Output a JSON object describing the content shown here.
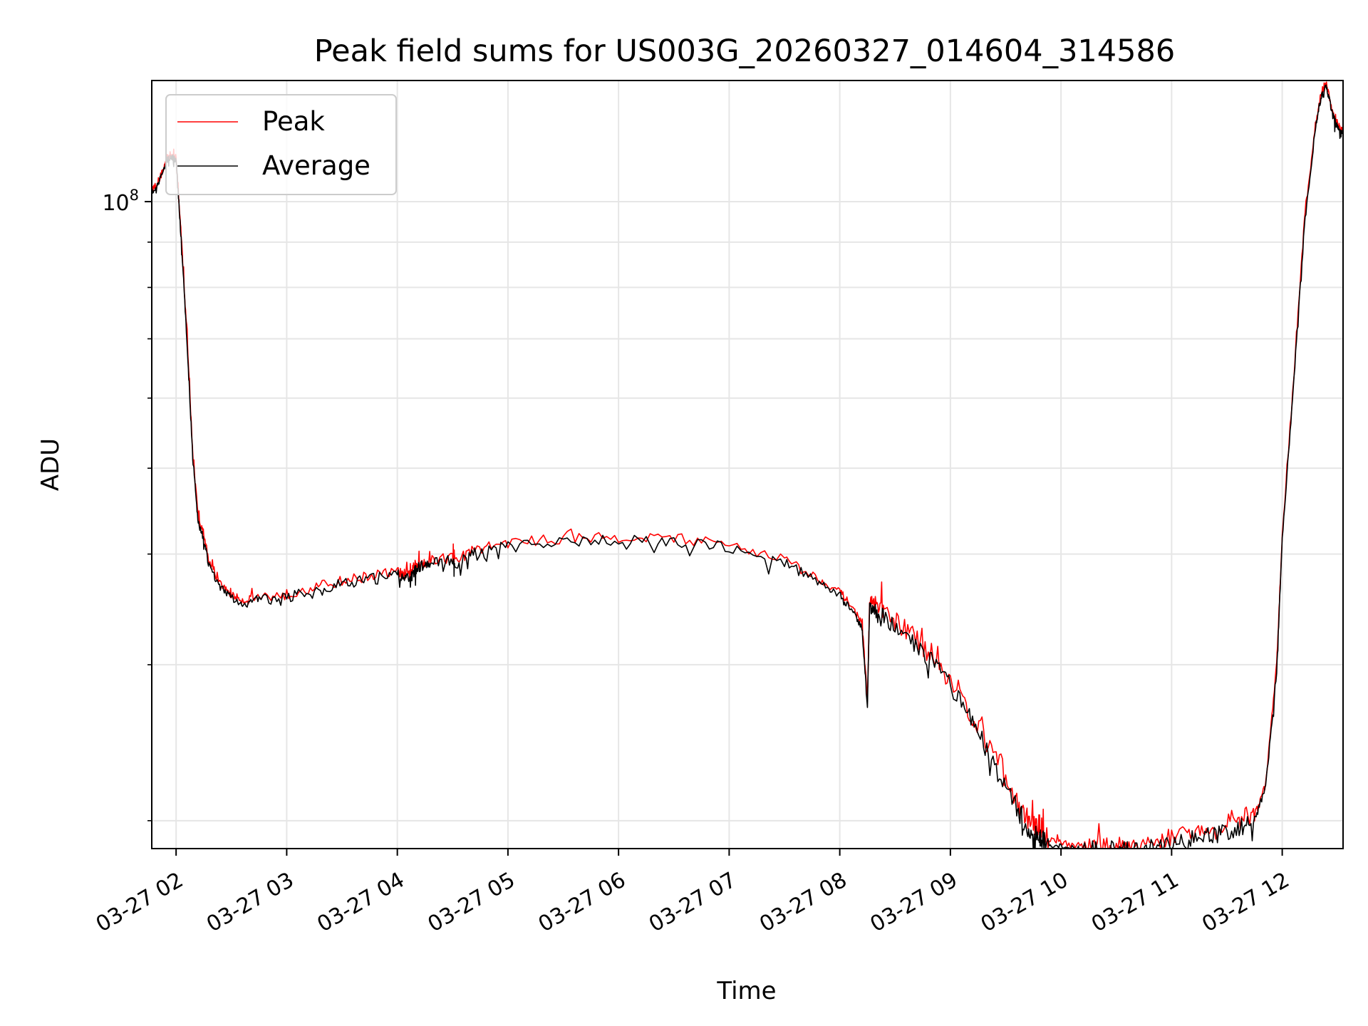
{
  "chart_data": {
    "type": "line",
    "title": "Peak field sums for US003G_20260327_014604_314586",
    "xlabel": "Time",
    "ylabel": "ADU",
    "yscale": "log",
    "ylim": [
      18600000,
      137000000
    ],
    "xlim": [
      1.78,
      12.55
    ],
    "x_unit": "hour of 2026-03-27",
    "grid": true,
    "legend_position": "upper left",
    "colors": {
      "peak": "#ff0000",
      "average": "#000000",
      "grid": "#e6e6e6",
      "axes": "#000000"
    },
    "x_ticks": [
      {
        "value": 2,
        "label": "03-27 02"
      },
      {
        "value": 3,
        "label": "03-27 03"
      },
      {
        "value": 4,
        "label": "03-27 04"
      },
      {
        "value": 5,
        "label": "03-27 05"
      },
      {
        "value": 6,
        "label": "03-27 06"
      },
      {
        "value": 7,
        "label": "03-27 07"
      },
      {
        "value": 8,
        "label": "03-27 08"
      },
      {
        "value": 9,
        "label": "03-27 09"
      },
      {
        "value": 10,
        "label": "03-27 10"
      },
      {
        "value": 11,
        "label": "03-27 11"
      },
      {
        "value": 12,
        "label": "03-27 12"
      }
    ],
    "y_major_ticks": [
      {
        "value": 100000000,
        "label_base": "10",
        "label_exp": "8"
      }
    ],
    "y_minor_ticks": [
      20000000,
      30000000,
      40000000,
      50000000,
      60000000,
      70000000,
      80000000,
      90000000
    ],
    "series": [
      {
        "name": "Peak",
        "color": "#ff0000",
        "x": [
          1.78,
          1.85,
          1.92,
          1.95,
          2.0,
          2.05,
          2.1,
          2.15,
          2.2,
          2.25,
          2.3,
          2.4,
          2.5,
          2.6,
          2.75,
          3.0,
          3.25,
          3.5,
          3.75,
          4.0,
          4.1,
          4.15,
          4.2,
          4.3,
          4.5,
          4.52,
          4.7,
          5.0,
          5.5,
          6.0,
          6.5,
          7.0,
          7.5,
          7.8,
          8.0,
          8.1,
          8.2,
          8.25,
          8.27,
          8.3,
          8.4,
          8.6,
          8.8,
          9.0,
          9.2,
          9.4,
          9.6,
          9.7,
          9.8,
          9.85,
          10.0,
          10.2,
          10.4,
          10.6,
          10.8,
          11.0,
          11.2,
          11.4,
          11.6,
          11.75,
          11.85,
          11.95,
          12.0,
          12.1,
          12.2,
          12.3,
          12.35,
          12.4,
          12.45,
          12.5,
          12.55
        ],
        "y": [
          103000000,
          106000000,
          112000000,
          113000000,
          112000000,
          90000000,
          70000000,
          52000000,
          44000000,
          42000000,
          39000000,
          37000000,
          36000000,
          35500000,
          35800000,
          36000000,
          36700000,
          37300000,
          37800000,
          38200000,
          37800000,
          38500000,
          39000000,
          39300000,
          39700000,
          39200000,
          40500000,
          41200000,
          41600000,
          41800000,
          41700000,
          41000000,
          39500000,
          37500000,
          36300000,
          35000000,
          33500000,
          27500000,
          35500000,
          35000000,
          34300000,
          32900000,
          31000000,
          28800000,
          26200000,
          23600000,
          21000000,
          20000000,
          19500000,
          19200000,
          18900000,
          18700000,
          18700000,
          18800000,
          18900000,
          19100000,
          19300000,
          19500000,
          19800000,
          20200000,
          22000000,
          30000000,
          42000000,
          62000000,
          95000000,
          122000000,
          132000000,
          136000000,
          127000000,
          122000000,
          120000000
        ]
      },
      {
        "name": "Average",
        "color": "#000000",
        "x": [
          1.78,
          1.85,
          1.92,
          1.95,
          2.0,
          2.05,
          2.1,
          2.15,
          2.2,
          2.25,
          2.3,
          2.4,
          2.5,
          2.6,
          2.75,
          3.0,
          3.25,
          3.5,
          3.75,
          4.0,
          4.1,
          4.15,
          4.2,
          4.3,
          4.5,
          4.52,
          4.7,
          5.0,
          5.5,
          6.0,
          6.5,
          7.0,
          7.5,
          7.8,
          8.0,
          8.1,
          8.2,
          8.25,
          8.27,
          8.3,
          8.4,
          8.6,
          8.8,
          9.0,
          9.2,
          9.4,
          9.6,
          9.7,
          9.8,
          9.85,
          10.0,
          10.2,
          10.4,
          10.6,
          10.8,
          11.0,
          11.2,
          11.4,
          11.6,
          11.75,
          11.85,
          11.95,
          12.0,
          12.1,
          12.2,
          12.3,
          12.35,
          12.4,
          12.45,
          12.5,
          12.55
        ],
        "y": [
          102500000,
          105500000,
          111500000,
          112500000,
          111500000,
          89000000,
          69000000,
          51500000,
          43500000,
          41500000,
          38700000,
          36700000,
          35700000,
          35200000,
          35500000,
          35700000,
          36400000,
          37000000,
          37500000,
          37900000,
          37500000,
          38200000,
          38700000,
          39000000,
          39400000,
          38900000,
          40200000,
          40900000,
          41300000,
          41500000,
          41400000,
          40700000,
          39200000,
          37200000,
          36000000,
          34600000,
          33000000,
          27000000,
          35200000,
          34600000,
          33900000,
          32500000,
          30500000,
          28300000,
          25700000,
          23100000,
          20600000,
          19700000,
          19200000,
          18950000,
          18700000,
          18550000,
          18550000,
          18600000,
          18700000,
          18900000,
          19100000,
          19300000,
          19600000,
          20000000,
          21800000,
          29500000,
          41500000,
          61500000,
          94000000,
          121000000,
          131000000,
          135000000,
          126000000,
          121000000,
          119000000
        ]
      }
    ]
  }
}
